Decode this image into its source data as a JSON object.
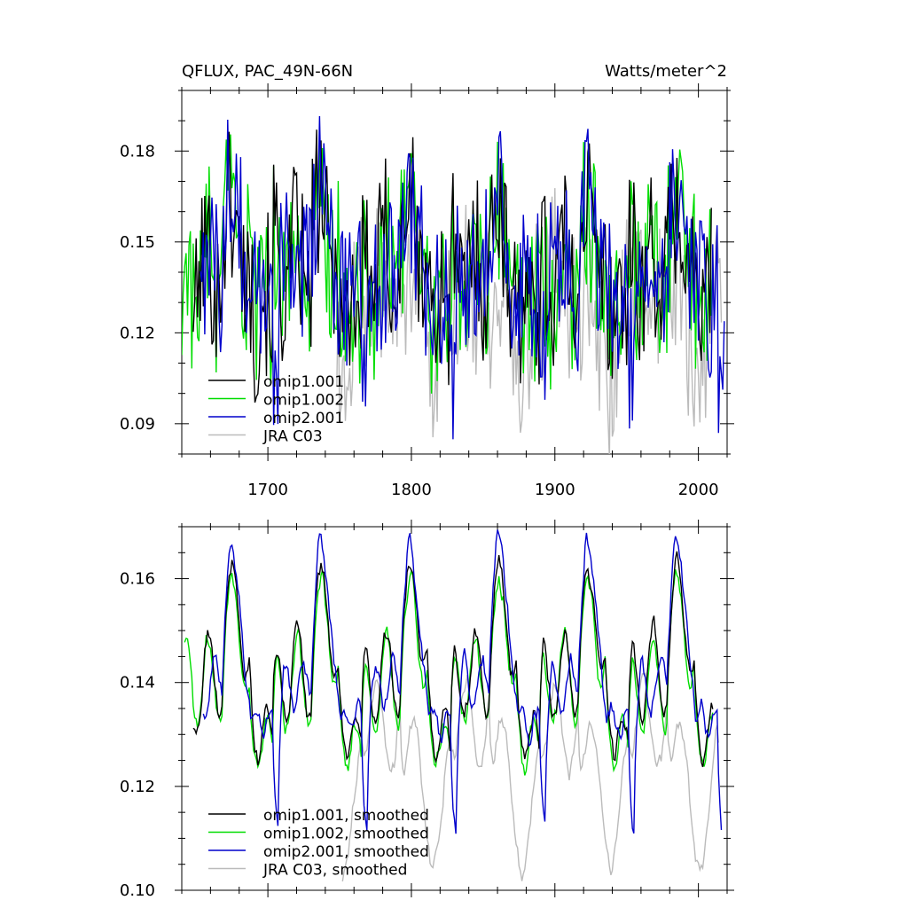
{
  "chart_data": [
    {
      "type": "line",
      "title_left": "QFLUX, PAC_49N-66N",
      "title_right": "Watts/meter^2",
      "xlabel": "",
      "ylabel": "",
      "xlim": [
        1640,
        2020
      ],
      "ylim": [
        0.08,
        0.2
      ],
      "xticks": [
        1700,
        1800,
        1900,
        2000
      ],
      "xtick_labels": [
        "1700",
        "1800",
        "1900",
        "2000"
      ],
      "yticks": [
        0.09,
        0.12,
        0.15,
        0.18
      ],
      "ytick_labels": [
        "0.09",
        "0.12",
        "0.15",
        "0.18"
      ],
      "legend_position": "bottom-left",
      "grid": false,
      "series": [
        {
          "name": "omip1.001",
          "color": "#000000",
          "kind": "omip1",
          "start": 1648,
          "end": 2009,
          "offset": 0.0015
        },
        {
          "name": "omip1.002",
          "color": "#00dd00",
          "kind": "omip1",
          "start": 1640,
          "end": 2009,
          "offset": 0.0
        },
        {
          "name": "omip2.001",
          "color": "#0000cc",
          "kind": "omip2",
          "start": 1653,
          "end": 2018,
          "offset": 0.0
        },
        {
          "name": "JRA C03",
          "color": "#bbbbbb",
          "kind": "jra",
          "start": 1748,
          "end": 2016,
          "offset": 0.0
        }
      ]
    },
    {
      "type": "line",
      "title_left": "",
      "title_right": "",
      "xlabel": "",
      "ylabel": "",
      "xlim": [
        1640,
        2020
      ],
      "ylim": [
        0.1,
        0.17
      ],
      "xticks": [
        1700,
        1800,
        1900,
        2000
      ],
      "xtick_labels": [],
      "yticks": [
        0.1,
        0.12,
        0.14,
        0.16
      ],
      "ytick_labels": [
        "0.10",
        "0.12",
        "0.14",
        "0.16"
      ],
      "legend_position": "bottom-left",
      "grid": false,
      "series": [
        {
          "name": "omip1.001, smoothed",
          "color": "#000000",
          "kind": "omip1s",
          "start": 1648,
          "end": 2010,
          "offset": 0.0008
        },
        {
          "name": "omip1.002, smoothed",
          "color": "#00dd00",
          "kind": "omip1s",
          "start": 1642,
          "end": 2010,
          "offset": 0.0
        },
        {
          "name": "omip2.001, smoothed",
          "color": "#0000cc",
          "kind": "omip2s",
          "start": 1655,
          "end": 2016,
          "offset": 0.0
        },
        {
          "name": "JRA C03, smoothed",
          "color": "#bbbbbb",
          "kind": "jras",
          "start": 1752,
          "end": 2014,
          "offset": 0.0
        }
      ]
    }
  ]
}
